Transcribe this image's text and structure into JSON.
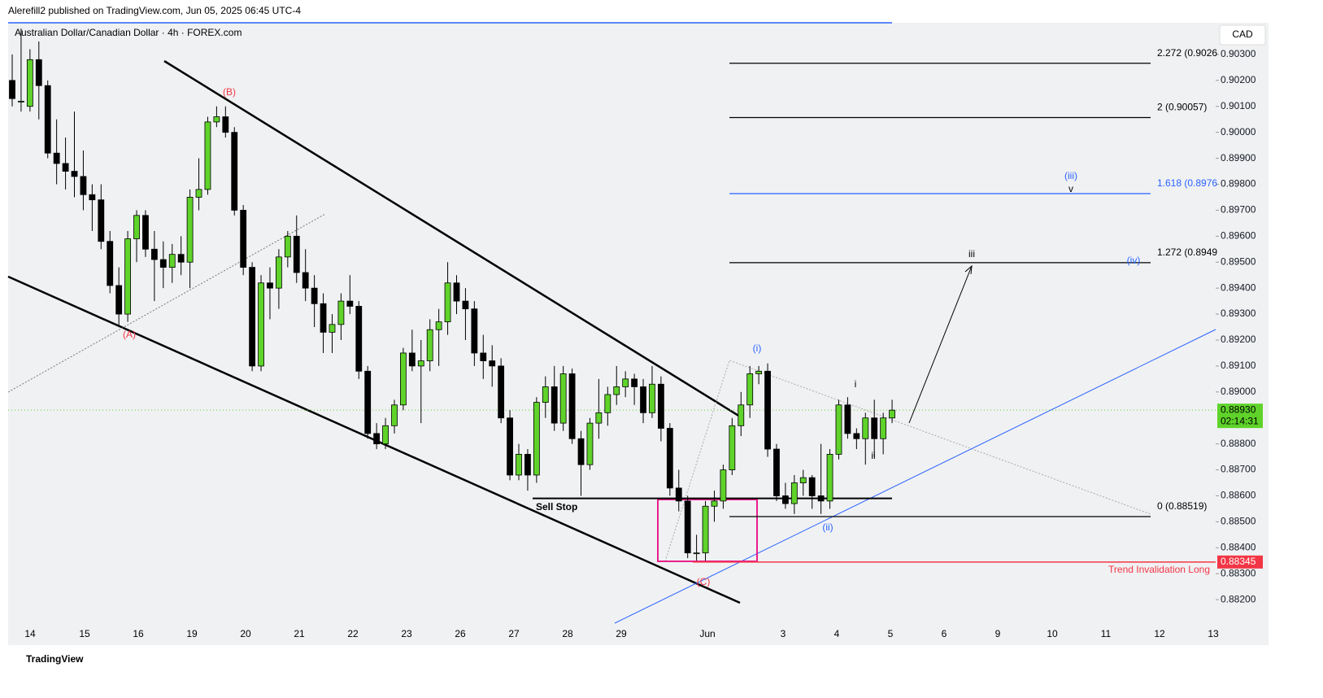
{
  "header": {
    "published": "Alerefill2 published on TradingView.com, Jun 05, 2025 06:45 UTC-4",
    "footer": "TradingView"
  },
  "chart_data": {
    "type": "candlestick",
    "title": "Australian Dollar/Canadian Dollar · 4h · FOREX.com",
    "currency": "CAD",
    "up_color": "#5fd32a",
    "down_color": "#000000",
    "x_labels": [
      "14",
      "15",
      "16",
      "19",
      "20",
      "21",
      "22",
      "23",
      "26",
      "27",
      "28",
      "29",
      "Jun",
      "3",
      "4",
      "5",
      "6",
      "9",
      "10",
      "11",
      "12",
      "13"
    ],
    "open": [
      0.902,
      0.9012,
      0.901,
      0.9028,
      0.9018,
      0.8992,
      0.8988,
      0.8985,
      0.8983,
      0.8976,
      0.8974,
      0.8958,
      0.8941,
      0.893,
      0.8959,
      0.8968,
      0.8955,
      0.8951,
      0.8948,
      0.8953,
      0.895,
      0.8975,
      0.8978,
      0.9004,
      0.9006,
      0.9,
      0.897,
      0.8948,
      0.891,
      0.8942,
      0.894,
      0.8952,
      0.896,
      0.8946,
      0.894,
      0.8934,
      0.8923,
      0.8926,
      0.8935,
      0.8933,
      0.8908,
      0.8884,
      0.888,
      0.8887,
      0.8895,
      0.8915,
      0.891,
      0.8912,
      0.8924,
      0.8927,
      0.8942,
      0.8935,
      0.8932,
      0.8915,
      0.8912,
      0.891,
      0.889,
      0.8868,
      0.8876,
      0.8868,
      0.8896,
      0.8902,
      0.8888,
      0.8907,
      0.8882,
      0.8872,
      0.8888,
      0.8892,
      0.8899,
      0.8902,
      0.8905,
      0.8902,
      0.8892,
      0.8903,
      0.8886,
      0.8863,
      0.8858,
      0.8838,
      0.8838,
      0.8856,
      0.8858,
      0.887,
      0.8887,
      0.8895,
      0.8907,
      0.8908,
      0.8878,
      0.886,
      0.8857,
      0.8865,
      0.8867,
      0.886,
      0.8858,
      0.8876,
      0.8895,
      0.8884,
      0.8882,
      0.889,
      0.8882,
      0.889
    ],
    "high": [
      0.903,
      0.904,
      0.9032,
      0.9035,
      0.902,
      0.9005,
      0.8998,
      0.9008,
      0.8993,
      0.898,
      0.898,
      0.8962,
      0.8948,
      0.8962,
      0.897,
      0.897,
      0.8962,
      0.8958,
      0.8957,
      0.896,
      0.8978,
      0.899,
      0.9006,
      0.901,
      0.901,
      0.9002,
      0.8972,
      0.895,
      0.8945,
      0.8948,
      0.8955,
      0.8962,
      0.8968,
      0.8955,
      0.8945,
      0.8938,
      0.893,
      0.8938,
      0.8945,
      0.8935,
      0.891,
      0.8888,
      0.889,
      0.8897,
      0.8917,
      0.8924,
      0.892,
      0.8928,
      0.8932,
      0.895,
      0.8945,
      0.894,
      0.8935,
      0.8922,
      0.8918,
      0.8913,
      0.8893,
      0.888,
      0.8878,
      0.8898,
      0.8906,
      0.891,
      0.891,
      0.8909,
      0.8885,
      0.889,
      0.8905,
      0.8902,
      0.891,
      0.8908,
      0.8907,
      0.8905,
      0.891,
      0.8906,
      0.8888,
      0.887,
      0.886,
      0.8845,
      0.8858,
      0.8862,
      0.8872,
      0.889,
      0.89,
      0.891,
      0.891,
      0.8911,
      0.888,
      0.8865,
      0.8868,
      0.887,
      0.8868,
      0.888,
      0.8878,
      0.8897,
      0.8898,
      0.8886,
      0.8892,
      0.8897,
      0.8892,
      0.8897
    ],
    "low": [
      0.901,
      0.9008,
      0.9008,
      0.9005,
      0.899,
      0.898,
      0.8978,
      0.8975,
      0.897,
      0.8962,
      0.8955,
      0.8938,
      0.8925,
      0.8927,
      0.895,
      0.8952,
      0.8935,
      0.894,
      0.8942,
      0.8945,
      0.894,
      0.897,
      0.8976,
      0.9002,
      0.8998,
      0.8968,
      0.8945,
      0.8908,
      0.8908,
      0.8928,
      0.8932,
      0.8948,
      0.8942,
      0.8935,
      0.8925,
      0.8915,
      0.8915,
      0.892,
      0.893,
      0.8905,
      0.8882,
      0.8878,
      0.8878,
      0.8884,
      0.8893,
      0.8908,
      0.8888,
      0.8908,
      0.891,
      0.8922,
      0.893,
      0.892,
      0.891,
      0.8905,
      0.8902,
      0.8888,
      0.8866,
      0.8866,
      0.8862,
      0.8865,
      0.889,
      0.8885,
      0.8885,
      0.888,
      0.886,
      0.887,
      0.8882,
      0.8887,
      0.8895,
      0.8898,
      0.8895,
      0.8888,
      0.889,
      0.8881,
      0.886,
      0.8854,
      0.8836,
      0.8835,
      0.8835,
      0.885,
      0.8855,
      0.8868,
      0.8883,
      0.889,
      0.8903,
      0.8875,
      0.8858,
      0.8855,
      0.8853,
      0.886,
      0.8855,
      0.8853,
      0.8855,
      0.8874,
      0.8882,
      0.8878,
      0.8872,
      0.8875,
      0.8876,
      0.8888
    ],
    "close": [
      0.9013,
      0.9012,
      0.9028,
      0.9018,
      0.8992,
      0.8988,
      0.8985,
      0.8983,
      0.8976,
      0.8974,
      0.8958,
      0.8941,
      0.893,
      0.8959,
      0.8968,
      0.8955,
      0.8951,
      0.8948,
      0.8953,
      0.895,
      0.8975,
      0.8978,
      0.9004,
      0.9006,
      0.9,
      0.897,
      0.8948,
      0.891,
      0.8942,
      0.894,
      0.8952,
      0.896,
      0.8946,
      0.894,
      0.8934,
      0.8923,
      0.8926,
      0.8935,
      0.8933,
      0.8908,
      0.8884,
      0.888,
      0.8887,
      0.8895,
      0.8915,
      0.891,
      0.8912,
      0.8924,
      0.8927,
      0.8942,
      0.8935,
      0.8932,
      0.8915,
      0.8912,
      0.891,
      0.889,
      0.8868,
      0.8876,
      0.8868,
      0.8896,
      0.8902,
      0.8888,
      0.8907,
      0.8882,
      0.8872,
      0.8888,
      0.8892,
      0.8899,
      0.8902,
      0.8905,
      0.8902,
      0.8892,
      0.8903,
      0.8886,
      0.8863,
      0.8858,
      0.8838,
      0.8838,
      0.8856,
      0.8858,
      0.887,
      0.8887,
      0.8895,
      0.8907,
      0.8908,
      0.8878,
      0.886,
      0.8857,
      0.8865,
      0.8867,
      0.886,
      0.8858,
      0.8876,
      0.8895,
      0.8884,
      0.8882,
      0.889,
      0.8882,
      0.889,
      0.8893
    ],
    "ylim": [
      0.88097,
      0.90422
    ],
    "yticks": [
      {
        "value": 0.903,
        "label": "0.90300"
      },
      {
        "value": 0.902,
        "label": "0.90200"
      },
      {
        "value": 0.901,
        "label": "0.90100"
      },
      {
        "value": 0.9,
        "label": "0.90000"
      },
      {
        "value": 0.899,
        "label": "0.89900"
      },
      {
        "value": 0.898,
        "label": "0.89800"
      },
      {
        "value": 0.897,
        "label": "0.89700"
      },
      {
        "value": 0.896,
        "label": "0.89600"
      },
      {
        "value": 0.895,
        "label": "0.89500"
      },
      {
        "value": 0.894,
        "label": "0.89400"
      },
      {
        "value": 0.893,
        "label": "0.89300"
      },
      {
        "value": 0.892,
        "label": "0.89200"
      },
      {
        "value": 0.891,
        "label": "0.89100"
      },
      {
        "value": 0.89,
        "label": "0.89000"
      },
      {
        "value": 0.888,
        "label": "0.88800"
      },
      {
        "value": 0.887,
        "label": "0.88700"
      },
      {
        "value": 0.886,
        "label": "0.88600"
      },
      {
        "value": 0.885,
        "label": "0.88500"
      },
      {
        "value": 0.884,
        "label": "0.88400"
      },
      {
        "value": 0.883,
        "label": "0.88300"
      },
      {
        "value": 0.882,
        "label": "0.88200"
      }
    ],
    "last_price": {
      "value": 0.8893,
      "label": "0.88930",
      "countdown": "02:14:31"
    },
    "invalidation": {
      "value": 0.88345,
      "label": "0.88345",
      "text": "Trend Invalidation Long"
    },
    "sell_stop": {
      "value": 0.8859,
      "text": "Sell Stop"
    },
    "fib_levels": [
      {
        "value": 0.90266,
        "label": "2.272 (0.9026",
        "color": "#000000"
      },
      {
        "value": 0.90057,
        "label": "2 (0.90057)",
        "color": "#000000"
      },
      {
        "value": 0.89764,
        "label": "1.618 (0.8976",
        "color": "#2962ff"
      },
      {
        "value": 0.89498,
        "label": "1.272 (0.8949",
        "color": "#000000"
      },
      {
        "value": 0.8852,
        "label": "0 (0.88519)",
        "color": "#000000"
      }
    ],
    "wave_labels": [
      "(A)",
      "(B)",
      "(C)",
      "(i)",
      "(ii)",
      "(iii)",
      "(iv)",
      "i",
      "ii",
      "iii",
      "v"
    ]
  }
}
